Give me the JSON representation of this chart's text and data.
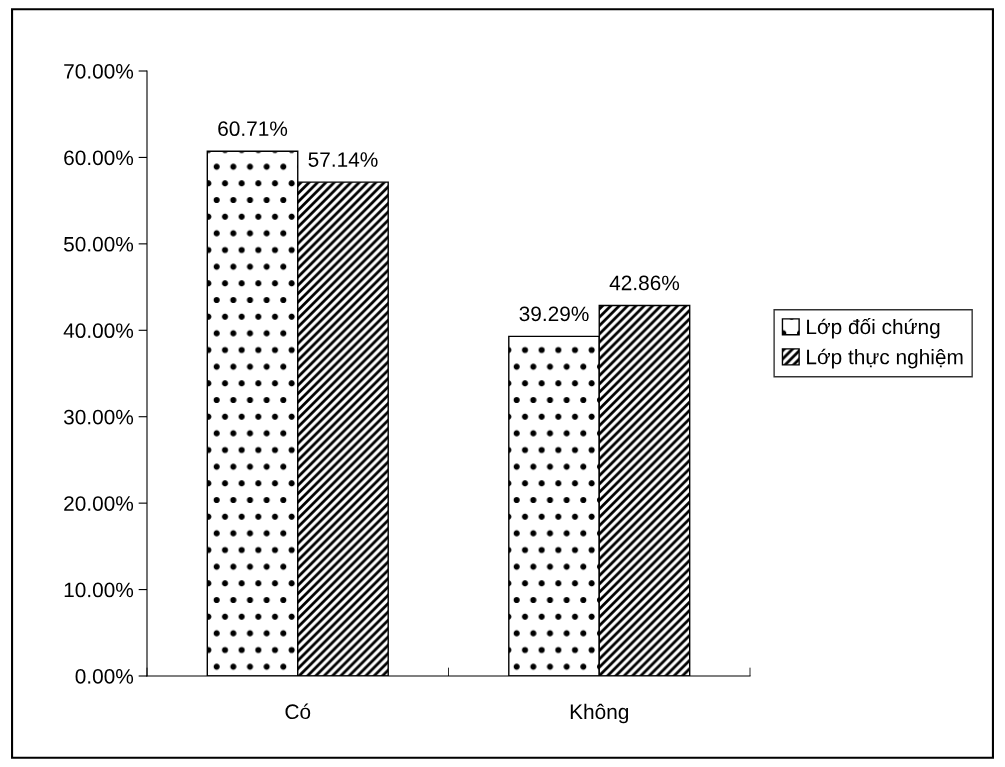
{
  "chart_data": {
    "type": "bar",
    "categories": [
      "Có",
      "Không"
    ],
    "series": [
      {
        "name": "Lớp đối chứng",
        "color": "#000000",
        "values": [
          60.71,
          39.29
        ],
        "value_labels": [
          "60.71%",
          "39.29%"
        ]
      },
      {
        "name": "Lớp thực nghiệm",
        "color": "#000000",
        "values": [
          57.14,
          42.86
        ],
        "value_labels": [
          "57.14%",
          "42.86%"
        ]
      }
    ],
    "ylim": [
      0,
      70
    ],
    "yticks": [
      {
        "value": 0,
        "label": "0.00%"
      },
      {
        "value": 10,
        "label": "10.00%"
      },
      {
        "value": 20,
        "label": "20.00%"
      },
      {
        "value": 30,
        "label": "30.00%"
      },
      {
        "value": 40,
        "label": "40.00%"
      },
      {
        "value": 50,
        "label": "50.00%"
      },
      {
        "value": 60,
        "label": "60.00%"
      },
      {
        "value": 70,
        "label": "70.00%"
      }
    ],
    "grid": false,
    "legend": "right"
  }
}
